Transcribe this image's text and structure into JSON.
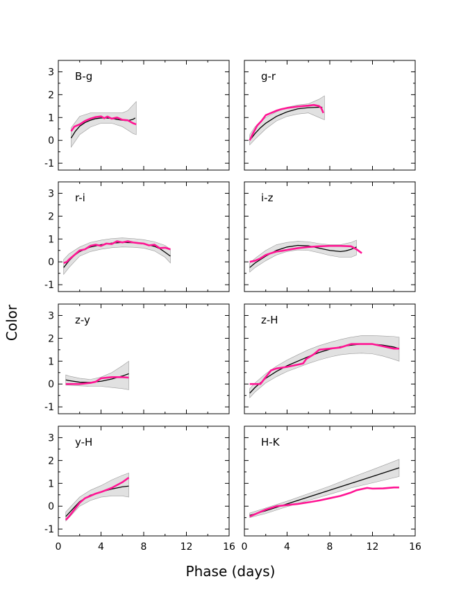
{
  "figure": {
    "ylabel": "Color",
    "xlabel": "Phase (days)",
    "colors": {
      "model": "#000000",
      "band": "#c8c8c8",
      "observed": "#ff1493"
    }
  },
  "chart_data": [
    {
      "type": "line",
      "title": "B-g",
      "xlim": [
        0,
        16
      ],
      "ylim": [
        -1.3,
        3.5
      ],
      "xticks": [
        0,
        4,
        8,
        12,
        16
      ],
      "yticks": [
        -1,
        0,
        1,
        2,
        3
      ],
      "series": [
        {
          "name": "model",
          "x": [
            1.2,
            1.6,
            2,
            2.5,
            3,
            3.5,
            4,
            4.5,
            5,
            5.5,
            6,
            6.5,
            7,
            7.2
          ],
          "y": [
            0.1,
            0.4,
            0.62,
            0.78,
            0.88,
            0.95,
            0.98,
            0.98,
            0.96,
            0.92,
            0.88,
            0.86,
            0.92,
            0.98
          ]
        },
        {
          "name": "band_upper",
          "x": [
            1.2,
            2,
            3,
            4,
            5,
            6,
            6.5,
            7,
            7.3
          ],
          "y": [
            0.55,
            1.05,
            1.2,
            1.2,
            1.2,
            1.2,
            1.3,
            1.55,
            1.7
          ]
        },
        {
          "name": "band_lower",
          "x": [
            1.2,
            2,
            3,
            4,
            5,
            6,
            6.5,
            7,
            7.3
          ],
          "y": [
            -0.3,
            0.25,
            0.58,
            0.75,
            0.75,
            0.6,
            0.45,
            0.3,
            0.25
          ]
        },
        {
          "name": "observed",
          "x": [
            1.2,
            1.5,
            2,
            2.5,
            3,
            3.5,
            4,
            4.3,
            4.6,
            5,
            5.5,
            6,
            6.5,
            7,
            7.3
          ],
          "y": [
            0.4,
            0.6,
            0.7,
            0.85,
            0.95,
            1.02,
            1.05,
            0.97,
            1.04,
            0.95,
            1.0,
            0.9,
            0.88,
            0.75,
            0.7
          ]
        }
      ]
    },
    {
      "type": "line",
      "title": "g-r",
      "xlim": [
        0,
        16
      ],
      "ylim": [
        -1.3,
        3.5
      ],
      "xticks": [
        0,
        4,
        8,
        12,
        16
      ],
      "yticks": [
        -1,
        0,
        1,
        2,
        3
      ],
      "series": [
        {
          "name": "model",
          "x": [
            0.5,
            1,
            1.5,
            2,
            2.5,
            3,
            3.5,
            4,
            5,
            6,
            7,
            7.3
          ],
          "y": [
            0.0,
            0.3,
            0.55,
            0.75,
            0.9,
            1.05,
            1.15,
            1.25,
            1.38,
            1.43,
            1.45,
            1.45
          ]
        },
        {
          "name": "band_upper",
          "x": [
            0.5,
            1,
            2,
            3,
            4,
            5,
            6,
            7,
            7.5
          ],
          "y": [
            0.25,
            0.6,
            1.0,
            1.25,
            1.45,
            1.55,
            1.6,
            1.8,
            1.95
          ]
        },
        {
          "name": "band_lower",
          "x": [
            0.5,
            1,
            2,
            3,
            4,
            5,
            6,
            7,
            7.5
          ],
          "y": [
            -0.2,
            0.05,
            0.5,
            0.85,
            1.05,
            1.15,
            1.2,
            1.0,
            0.9
          ]
        },
        {
          "name": "observed",
          "x": [
            0.5,
            0.8,
            1.2,
            1.6,
            2,
            2.5,
            3,
            3.5,
            4,
            4.5,
            5,
            5.5,
            6,
            6.5,
            7,
            7.2,
            7.4
          ],
          "y": [
            0.0,
            0.3,
            0.65,
            0.85,
            1.1,
            1.2,
            1.3,
            1.37,
            1.42,
            1.45,
            1.48,
            1.5,
            1.52,
            1.55,
            1.5,
            1.42,
            1.2
          ]
        }
      ]
    },
    {
      "type": "line",
      "title": "r-i",
      "xlim": [
        0,
        16
      ],
      "ylim": [
        -1.3,
        3.5
      ],
      "xticks": [
        0,
        4,
        8,
        12,
        16
      ],
      "yticks": [
        -1,
        0,
        1,
        2,
        3
      ],
      "series": [
        {
          "name": "model",
          "x": [
            0.5,
            1,
            1.5,
            2,
            3,
            4,
            5,
            6,
            7,
            8,
            9,
            9.5,
            10,
            10.5
          ],
          "y": [
            -0.25,
            0.05,
            0.28,
            0.45,
            0.65,
            0.75,
            0.82,
            0.85,
            0.84,
            0.78,
            0.68,
            0.58,
            0.42,
            0.25
          ]
        },
        {
          "name": "band_upper",
          "x": [
            0.5,
            1,
            2,
            3,
            4,
            5,
            6,
            7,
            8,
            9,
            10,
            10.5
          ],
          "y": [
            0.1,
            0.35,
            0.65,
            0.85,
            0.95,
            1.02,
            1.05,
            1.02,
            0.97,
            0.88,
            0.72,
            0.55
          ]
        },
        {
          "name": "band_lower",
          "x": [
            0.5,
            1,
            2,
            3,
            4,
            5,
            6,
            7,
            8,
            9,
            10,
            10.5
          ],
          "y": [
            -0.55,
            -0.25,
            0.25,
            0.45,
            0.55,
            0.62,
            0.65,
            0.64,
            0.6,
            0.48,
            0.2,
            -0.05
          ]
        },
        {
          "name": "observed",
          "x": [
            0.5,
            0.8,
            1,
            1.5,
            2,
            2.5,
            3,
            3.5,
            4,
            4.5,
            5,
            5.5,
            6,
            6.5,
            7,
            7.5,
            8,
            8.5,
            9,
            9.5,
            10,
            10.5
          ],
          "y": [
            -0.05,
            0.0,
            0.1,
            0.3,
            0.5,
            0.55,
            0.7,
            0.75,
            0.7,
            0.8,
            0.78,
            0.9,
            0.85,
            0.9,
            0.85,
            0.82,
            0.8,
            0.72,
            0.75,
            0.6,
            0.62,
            0.55
          ]
        }
      ]
    },
    {
      "type": "line",
      "title": "i-z",
      "xlim": [
        0,
        16
      ],
      "ylim": [
        -1.3,
        3.5
      ],
      "xticks": [
        0,
        4,
        8,
        12,
        16
      ],
      "yticks": [
        -1,
        0,
        1,
        2,
        3
      ],
      "series": [
        {
          "name": "model",
          "x": [
            0.5,
            1,
            2,
            3,
            4,
            5,
            6,
            7,
            8,
            9,
            9.5,
            10,
            10.5
          ],
          "y": [
            -0.25,
            -0.05,
            0.25,
            0.5,
            0.65,
            0.72,
            0.7,
            0.6,
            0.5,
            0.45,
            0.48,
            0.55,
            0.65
          ]
        },
        {
          "name": "band_upper",
          "x": [
            0.5,
            1,
            2,
            3,
            4,
            5,
            6,
            7,
            8,
            9,
            10,
            10.5
          ],
          "y": [
            -0.05,
            0.15,
            0.5,
            0.75,
            0.85,
            0.9,
            0.88,
            0.8,
            0.75,
            0.75,
            0.85,
            0.95
          ]
        },
        {
          "name": "band_lower",
          "x": [
            0.5,
            1,
            2,
            3,
            4,
            5,
            6,
            7,
            8,
            9,
            10,
            10.5
          ],
          "y": [
            -0.45,
            -0.25,
            0.05,
            0.3,
            0.45,
            0.52,
            0.5,
            0.4,
            0.28,
            0.2,
            0.2,
            0.3
          ]
        },
        {
          "name": "observed",
          "x": [
            0.5,
            1,
            1.5,
            2,
            2.5,
            3,
            3.5,
            4,
            5,
            6,
            7,
            8,
            9,
            10,
            10.5,
            11
          ],
          "y": [
            0.0,
            0.05,
            0.15,
            0.3,
            0.38,
            0.45,
            0.48,
            0.52,
            0.6,
            0.65,
            0.68,
            0.7,
            0.7,
            0.68,
            0.55,
            0.38
          ]
        }
      ]
    },
    {
      "type": "line",
      "title": "z-y",
      "xlim": [
        0,
        16
      ],
      "ylim": [
        -1.3,
        3.5
      ],
      "xticks": [
        0,
        4,
        8,
        12,
        16
      ],
      "yticks": [
        -1,
        0,
        1,
        2,
        3
      ],
      "series": [
        {
          "name": "model",
          "x": [
            0.7,
            1,
            2,
            3,
            4,
            5,
            6,
            6.6
          ],
          "y": [
            0.18,
            0.15,
            0.08,
            0.07,
            0.12,
            0.22,
            0.35,
            0.45
          ]
        },
        {
          "name": "band_upper",
          "x": [
            0.7,
            1,
            2,
            3,
            4,
            5,
            6,
            6.6
          ],
          "y": [
            0.4,
            0.35,
            0.25,
            0.2,
            0.3,
            0.5,
            0.8,
            1.0
          ]
        },
        {
          "name": "band_lower",
          "x": [
            0.7,
            1,
            2,
            3,
            4,
            5,
            6,
            6.6
          ],
          "y": [
            -0.05,
            -0.05,
            -0.08,
            -0.1,
            -0.1,
            -0.15,
            -0.2,
            -0.25
          ]
        },
        {
          "name": "observed",
          "x": [
            0.7,
            1,
            2,
            3,
            3.5,
            4,
            5,
            6,
            6.6
          ],
          "y": [
            0.0,
            0.0,
            0.0,
            0.05,
            0.1,
            0.25,
            0.3,
            0.3,
            0.28
          ]
        }
      ]
    },
    {
      "type": "line",
      "title": "z-H",
      "xlim": [
        0,
        16
      ],
      "ylim": [
        -1.3,
        3.5
      ],
      "xticks": [
        0,
        4,
        8,
        12,
        16
      ],
      "yticks": [
        -1,
        0,
        1,
        2,
        3
      ],
      "series": [
        {
          "name": "model",
          "x": [
            0.5,
            1,
            2,
            3,
            4,
            5,
            6,
            7,
            8,
            9,
            10,
            11,
            12,
            13,
            14,
            14.5
          ],
          "y": [
            -0.4,
            -0.15,
            0.25,
            0.55,
            0.8,
            1.0,
            1.2,
            1.38,
            1.52,
            1.63,
            1.7,
            1.75,
            1.75,
            1.7,
            1.62,
            1.55
          ]
        },
        {
          "name": "band_upper",
          "x": [
            0.5,
            1,
            2,
            3,
            4,
            5,
            6,
            7,
            8,
            9,
            10,
            11,
            12,
            13,
            14,
            14.5
          ],
          "y": [
            -0.2,
            0.05,
            0.45,
            0.78,
            1.05,
            1.28,
            1.5,
            1.68,
            1.82,
            1.95,
            2.05,
            2.12,
            2.12,
            2.1,
            2.08,
            2.05
          ]
        },
        {
          "name": "band_lower",
          "x": [
            0.5,
            1,
            2,
            3,
            4,
            5,
            6,
            7,
            8,
            9,
            10,
            11,
            12,
            13,
            14,
            14.5
          ],
          "y": [
            -0.6,
            -0.35,
            0.05,
            0.32,
            0.55,
            0.72,
            0.9,
            1.05,
            1.18,
            1.28,
            1.33,
            1.35,
            1.32,
            1.22,
            1.08,
            1.0
          ]
        },
        {
          "name": "observed",
          "x": [
            0.5,
            1.5,
            2,
            2.5,
            3,
            4,
            5,
            5.5,
            5.8,
            6.5,
            7,
            8,
            9,
            10,
            11,
            12,
            13,
            14,
            14.5
          ],
          "y": [
            0.0,
            0.0,
            0.3,
            0.6,
            0.68,
            0.75,
            0.85,
            0.9,
            1.1,
            1.3,
            1.5,
            1.55,
            1.6,
            1.75,
            1.75,
            1.75,
            1.65,
            1.55,
            1.55
          ]
        }
      ]
    },
    {
      "type": "line",
      "title": "y-H",
      "xlim": [
        0,
        16
      ],
      "ylim": [
        -1.3,
        3.5
      ],
      "xticks": [
        0,
        4,
        8,
        12,
        16
      ],
      "yticks": [
        -1,
        0,
        1,
        2,
        3
      ],
      "series": [
        {
          "name": "model",
          "x": [
            0.7,
            1,
            1.5,
            2,
            2.5,
            3,
            4,
            5,
            6,
            6.6
          ],
          "y": [
            -0.45,
            -0.3,
            -0.05,
            0.2,
            0.35,
            0.48,
            0.62,
            0.75,
            0.85,
            0.88
          ]
        },
        {
          "name": "band_upper",
          "x": [
            0.7,
            1,
            2,
            3,
            4,
            5,
            6,
            6.6
          ],
          "y": [
            -0.25,
            -0.1,
            0.4,
            0.7,
            0.9,
            1.15,
            1.35,
            1.45
          ]
        },
        {
          "name": "band_lower",
          "x": [
            0.7,
            1,
            2,
            3,
            4,
            5,
            6,
            6.6
          ],
          "y": [
            -0.65,
            -0.5,
            0.0,
            0.25,
            0.4,
            0.45,
            0.45,
            0.4
          ]
        },
        {
          "name": "observed",
          "x": [
            0.7,
            1,
            1.5,
            2,
            2.5,
            3,
            3.5,
            4,
            5,
            6,
            6.6
          ],
          "y": [
            -0.6,
            -0.45,
            -0.15,
            0.15,
            0.35,
            0.45,
            0.55,
            0.62,
            0.8,
            1.05,
            1.25
          ]
        }
      ]
    },
    {
      "type": "line",
      "title": "H-K",
      "xlim": [
        0,
        16
      ],
      "ylim": [
        -1.3,
        3.5
      ],
      "xticks": [
        0,
        4,
        8,
        12,
        16
      ],
      "yticks": [
        -1,
        0,
        1,
        2,
        3
      ],
      "series": [
        {
          "name": "model",
          "x": [
            0.5,
            2,
            4,
            6,
            8,
            10,
            12,
            14.5
          ],
          "y": [
            -0.4,
            -0.2,
            0.1,
            0.4,
            0.7,
            1.0,
            1.3,
            1.68
          ]
        },
        {
          "name": "band_upper",
          "x": [
            0.5,
            2,
            4,
            6,
            8,
            10,
            12,
            14.5
          ],
          "y": [
            -0.3,
            -0.08,
            0.22,
            0.55,
            0.88,
            1.25,
            1.6,
            2.05
          ]
        },
        {
          "name": "band_lower",
          "x": [
            0.5,
            2,
            4,
            6,
            8,
            10,
            12,
            14.5
          ],
          "y": [
            -0.5,
            -0.32,
            -0.02,
            0.25,
            0.52,
            0.8,
            1.02,
            1.3
          ]
        },
        {
          "name": "observed",
          "x": [
            0.5,
            1,
            2,
            3,
            4,
            5,
            6,
            7,
            8,
            9,
            10,
            10.5,
            11,
            11.5,
            12,
            13,
            14,
            14.5
          ],
          "y": [
            -0.45,
            -0.35,
            -0.15,
            0.0,
            0.05,
            0.1,
            0.17,
            0.25,
            0.35,
            0.45,
            0.6,
            0.7,
            0.75,
            0.8,
            0.77,
            0.78,
            0.82,
            0.82
          ]
        }
      ]
    }
  ]
}
